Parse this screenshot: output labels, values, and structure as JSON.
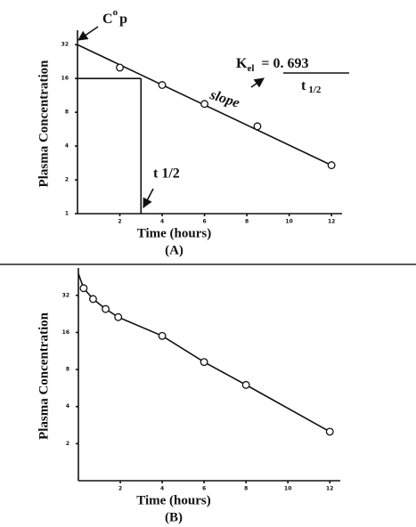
{
  "chart_data": [
    {
      "type": "line",
      "panel": "(A)",
      "y_label": "Plasma Concentration",
      "x_label": "Time (hours)",
      "log_scale": true,
      "xlim": [
        0,
        12.5
      ],
      "ylim": [
        1,
        40
      ],
      "xticks": [
        2,
        4,
        6,
        8,
        10,
        12
      ],
      "yticks": [
        1,
        2,
        4,
        8,
        16,
        32
      ],
      "x": [
        2,
        4,
        6,
        8.5,
        12
      ],
      "values": [
        20,
        14,
        9.5,
        6,
        2.7
      ],
      "fit_line": {
        "x": [
          0,
          12
        ],
        "values": [
          32,
          2.7
        ]
      },
      "half_life": {
        "x": 3,
        "value": 16
      },
      "annotations": {
        "c0p": {
          "base": "C",
          "sup": "o",
          "sub": "p"
        },
        "kel": {
          "k": "K",
          "k_sub": "el",
          "rhs": "= 0. 693",
          "den": "t",
          "den_sub": "1/2"
        },
        "slope": "slope",
        "t_half": "t 1/2"
      }
    },
    {
      "type": "line",
      "panel": "(B)",
      "y_label": "Plasma Concentration",
      "x_label": "Time (hours)",
      "log_scale": true,
      "xlim": [
        0,
        12.5
      ],
      "ylim": [
        1,
        50
      ],
      "xticks": [
        2,
        4,
        6,
        8,
        10,
        12
      ],
      "yticks": [
        2,
        4,
        8,
        16,
        32
      ],
      "x": [
        0.25,
        0.7,
        1.3,
        1.9,
        4,
        6,
        8,
        12
      ],
      "values": [
        36.6,
        29.9,
        24.8,
        21.3,
        15,
        9.2,
        6,
        2.5
      ],
      "fit_line": {
        "x": [
          0,
          0.25,
          0.7,
          1.3,
          1.9,
          4,
          6,
          8,
          12
        ],
        "values": [
          48,
          36.6,
          29.9,
          24.8,
          21.3,
          15,
          9.2,
          6,
          2.5
        ]
      }
    }
  ]
}
